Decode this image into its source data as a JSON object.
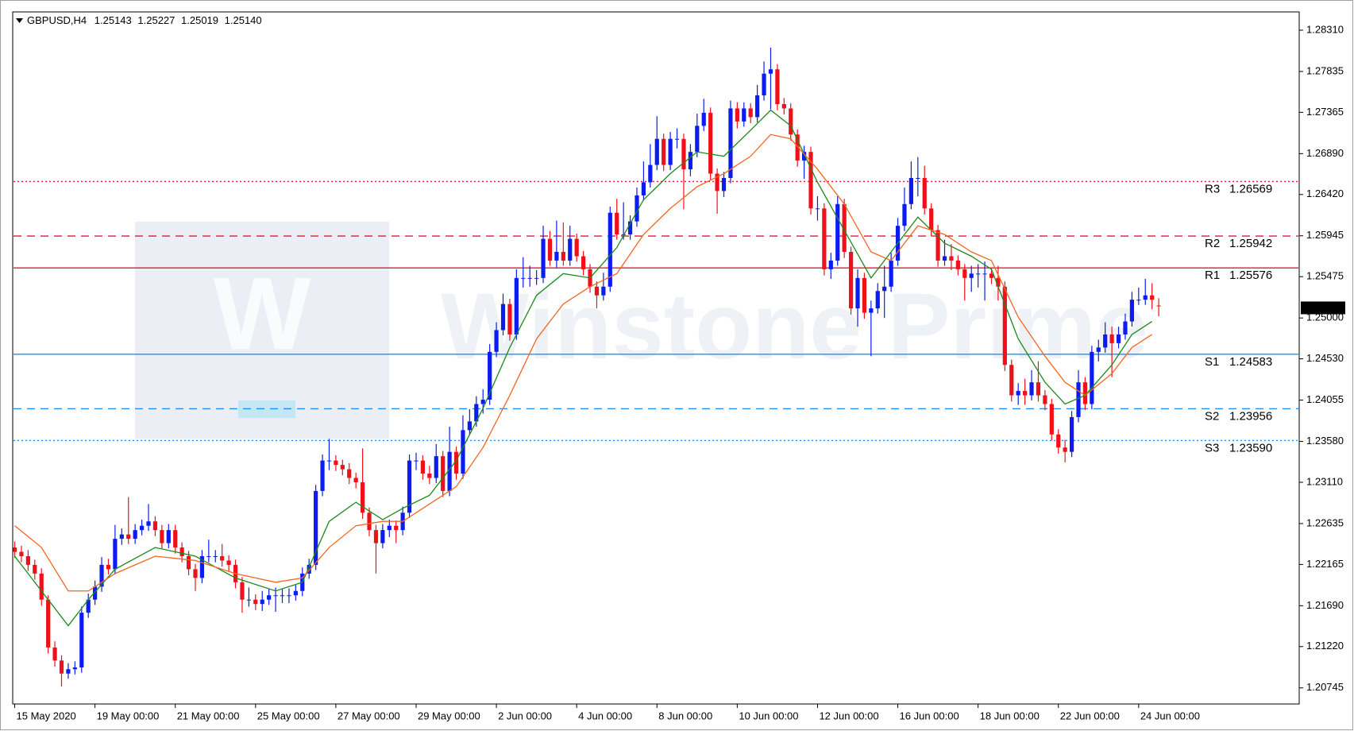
{
  "chart_data": {
    "type": "candlestick",
    "symbol": "GBPUSD,H4",
    "ohlc_labels": [
      "1.25143",
      "1.25227",
      "1.25019",
      "1.25140"
    ],
    "watermark": "Winstone Prime",
    "watermark_logo": "W",
    "up_color": "#0a1cf0",
    "down_color": "#f0101a",
    "candles": [
      [
        1.2236,
        1.2243,
        1.2224,
        1.2231
      ],
      [
        1.2231,
        1.2238,
        1.2219,
        1.2226
      ],
      [
        1.2226,
        1.2233,
        1.2209,
        1.2216
      ],
      [
        1.2216,
        1.2222,
        1.2199,
        1.2206
      ],
      [
        1.2206,
        1.2212,
        1.2169,
        1.2176
      ],
      [
        1.2176,
        1.2181,
        1.2114,
        1.2121
      ],
      [
        1.2121,
        1.2128,
        1.2099,
        1.2106
      ],
      [
        1.2106,
        1.2112,
        1.2076,
        1.2091
      ],
      [
        1.2091,
        1.2103,
        1.2085,
        1.2096
      ],
      [
        1.2096,
        1.2105,
        1.209,
        1.2098
      ],
      [
        1.2098,
        1.2168,
        1.2092,
        1.2161
      ],
      [
        1.2161,
        1.2183,
        1.2155,
        1.2176
      ],
      [
        1.2176,
        1.2198,
        1.217,
        1.2191
      ],
      [
        1.2191,
        1.2225,
        1.2185,
        1.2216
      ],
      [
        1.2216,
        1.2223,
        1.2205,
        1.2211
      ],
      [
        1.2211,
        1.2262,
        1.2205,
        1.2246
      ],
      [
        1.2246,
        1.2258,
        1.2239,
        1.2251
      ],
      [
        1.2251,
        1.2294,
        1.224,
        1.2246
      ],
      [
        1.2246,
        1.2263,
        1.224,
        1.2256
      ],
      [
        1.2256,
        1.2268,
        1.225,
        1.2261
      ],
      [
        1.2261,
        1.2286,
        1.2255,
        1.2266
      ],
      [
        1.2266,
        1.2272,
        1.2249,
        1.2256
      ],
      [
        1.2256,
        1.2262,
        1.2235,
        1.2241
      ],
      [
        1.2241,
        1.2263,
        1.2235,
        1.2256
      ],
      [
        1.2256,
        1.2262,
        1.2229,
        1.2236
      ],
      [
        1.2236,
        1.2242,
        1.2219,
        1.2226
      ],
      [
        1.2226,
        1.2232,
        1.2204,
        1.2211
      ],
      [
        1.2211,
        1.2217,
        1.2186,
        1.2201
      ],
      [
        1.2201,
        1.2233,
        1.2195,
        1.2226
      ],
      [
        1.2226,
        1.2245,
        1.2219,
        1.2226
      ],
      [
        1.2226,
        1.2233,
        1.2219,
        1.2226
      ],
      [
        1.2226,
        1.224,
        1.2214,
        1.2221
      ],
      [
        1.2221,
        1.2227,
        1.2209,
        1.2216
      ],
      [
        1.2216,
        1.2222,
        1.2189,
        1.2196
      ],
      [
        1.2196,
        1.2202,
        1.2161,
        1.2176
      ],
      [
        1.2176,
        1.219,
        1.2168,
        1.2176
      ],
      [
        1.2176,
        1.2182,
        1.2164,
        1.2171
      ],
      [
        1.2171,
        1.2186,
        1.2163,
        1.2176
      ],
      [
        1.2176,
        1.2188,
        1.217,
        1.2181
      ],
      [
        1.2181,
        1.219,
        1.2162,
        1.2181
      ],
      [
        1.2181,
        1.2188,
        1.2172,
        1.2181
      ],
      [
        1.2181,
        1.2189,
        1.2172,
        1.2181
      ],
      [
        1.2181,
        1.2193,
        1.2175,
        1.2186
      ],
      [
        1.2186,
        1.2213,
        1.218,
        1.2206
      ],
      [
        1.2206,
        1.2223,
        1.22,
        1.2216
      ],
      [
        1.2216,
        1.2308,
        1.221,
        1.2301
      ],
      [
        1.2301,
        1.2343,
        1.2295,
        1.2336
      ],
      [
        1.2336,
        1.2361,
        1.2325,
        1.2336
      ],
      [
        1.2336,
        1.2342,
        1.2324,
        1.2331
      ],
      [
        1.2331,
        1.2337,
        1.2319,
        1.2326
      ],
      [
        1.2326,
        1.2333,
        1.2309,
        1.2316
      ],
      [
        1.2316,
        1.2322,
        1.2304,
        1.2311
      ],
      [
        1.2311,
        1.235,
        1.2269,
        1.2276
      ],
      [
        1.2276,
        1.2282,
        1.2249,
        1.2256
      ],
      [
        1.2256,
        1.2262,
        1.2206,
        1.2241
      ],
      [
        1.2241,
        1.2263,
        1.2235,
        1.2256
      ],
      [
        1.2256,
        1.2268,
        1.2248,
        1.2261
      ],
      [
        1.2261,
        1.2267,
        1.2241,
        1.2256
      ],
      [
        1.2256,
        1.2283,
        1.225,
        1.2276
      ],
      [
        1.2276,
        1.2343,
        1.227,
        1.2336
      ],
      [
        1.2336,
        1.2345,
        1.2325,
        1.2336
      ],
      [
        1.2336,
        1.2342,
        1.2314,
        1.2321
      ],
      [
        1.2321,
        1.233,
        1.2309,
        1.2316
      ],
      [
        1.2316,
        1.2355,
        1.231,
        1.2341
      ],
      [
        1.2341,
        1.2347,
        1.2294,
        1.2301
      ],
      [
        1.2301,
        1.2375,
        1.2295,
        1.2346
      ],
      [
        1.2346,
        1.2352,
        1.2314,
        1.2321
      ],
      [
        1.2321,
        1.2388,
        1.2315,
        1.2371
      ],
      [
        1.2371,
        1.2395,
        1.2365,
        1.2381
      ],
      [
        1.2381,
        1.241,
        1.2375,
        1.2401
      ],
      [
        1.2401,
        1.2418,
        1.239,
        1.2406
      ],
      [
        1.2406,
        1.247,
        1.24,
        1.2461
      ],
      [
        1.2461,
        1.2495,
        1.2455,
        1.2486
      ],
      [
        1.2486,
        1.2528,
        1.248,
        1.2516
      ],
      [
        1.2516,
        1.2522,
        1.2474,
        1.2481
      ],
      [
        1.2481,
        1.2556,
        1.2475,
        1.2546
      ],
      [
        1.2546,
        1.257,
        1.2535,
        1.2546
      ],
      [
        1.2546,
        1.256,
        1.2536,
        1.2546
      ],
      [
        1.2546,
        1.2555,
        1.2538,
        1.2546
      ],
      [
        1.2546,
        1.2606,
        1.254,
        1.2591
      ],
      [
        1.2591,
        1.26,
        1.256,
        1.2566
      ],
      [
        1.2566,
        1.2612,
        1.2558,
        1.2576
      ],
      [
        1.2576,
        1.261,
        1.256,
        1.2566
      ],
      [
        1.2566,
        1.2606,
        1.256,
        1.2591
      ],
      [
        1.2591,
        1.2597,
        1.2565,
        1.2571
      ],
      [
        1.2571,
        1.2577,
        1.2549,
        1.2556
      ],
      [
        1.2556,
        1.2562,
        1.2529,
        1.2536
      ],
      [
        1.2536,
        1.2542,
        1.2511,
        1.2526
      ],
      [
        1.2526,
        1.2552,
        1.252,
        1.2536
      ],
      [
        1.2536,
        1.2628,
        1.253,
        1.2621
      ],
      [
        1.2621,
        1.2637,
        1.259,
        1.2596
      ],
      [
        1.2596,
        1.2633,
        1.259,
        1.2596
      ],
      [
        1.2596,
        1.2618,
        1.259,
        1.2611
      ],
      [
        1.2611,
        1.265,
        1.2605,
        1.2641
      ],
      [
        1.2641,
        1.268,
        1.2635,
        1.2656
      ],
      [
        1.2656,
        1.27,
        1.265,
        1.2676
      ],
      [
        1.2676,
        1.2732,
        1.267,
        1.2706
      ],
      [
        1.2706,
        1.2712,
        1.2669,
        1.2676
      ],
      [
        1.2676,
        1.2714,
        1.267,
        1.2706
      ],
      [
        1.2706,
        1.2718,
        1.2695,
        1.2706
      ],
      [
        1.2706,
        1.2712,
        1.2625,
        1.2671
      ],
      [
        1.2671,
        1.27,
        1.2663,
        1.2691
      ],
      [
        1.2691,
        1.2735,
        1.2685,
        1.2721
      ],
      [
        1.2721,
        1.2752,
        1.2715,
        1.2736
      ],
      [
        1.2736,
        1.2742,
        1.2658,
        1.2666
      ],
      [
        1.2666,
        1.2672,
        1.262,
        1.2646
      ],
      [
        1.2646,
        1.2668,
        1.2639,
        1.2661
      ],
      [
        1.2661,
        1.275,
        1.2655,
        1.2741
      ],
      [
        1.2741,
        1.2748,
        1.2718,
        1.2726
      ],
      [
        1.2726,
        1.2748,
        1.272,
        1.2741
      ],
      [
        1.2741,
        1.2747,
        1.2724,
        1.2731
      ],
      [
        1.2731,
        1.2768,
        1.2725,
        1.2756
      ],
      [
        1.2756,
        1.2795,
        1.275,
        1.2781
      ],
      [
        1.2781,
        1.2811,
        1.274,
        1.2786
      ],
      [
        1.2786,
        1.2792,
        1.2739,
        1.2746
      ],
      [
        1.2746,
        1.2753,
        1.2734,
        1.2741
      ],
      [
        1.2741,
        1.2747,
        1.2704,
        1.2711
      ],
      [
        1.2711,
        1.2717,
        1.2674,
        1.2681
      ],
      [
        1.2681,
        1.2698,
        1.266,
        1.2691
      ],
      [
        1.2691,
        1.2697,
        1.2619,
        1.2626
      ],
      [
        1.2626,
        1.264,
        1.2612,
        1.2626
      ],
      [
        1.2626,
        1.2632,
        1.2549,
        1.2556
      ],
      [
        1.2556,
        1.2575,
        1.2545,
        1.2566
      ],
      [
        1.2566,
        1.264,
        1.256,
        1.2631
      ],
      [
        1.2631,
        1.2637,
        1.2569,
        1.2576
      ],
      [
        1.2576,
        1.2582,
        1.2504,
        1.2511
      ],
      [
        1.2511,
        1.2556,
        1.249,
        1.2546
      ],
      [
        1.2546,
        1.2552,
        1.2499,
        1.2506
      ],
      [
        1.2506,
        1.252,
        1.2456,
        1.2511
      ],
      [
        1.2511,
        1.254,
        1.2505,
        1.2531
      ],
      [
        1.2531,
        1.256,
        1.25,
        1.2536
      ],
      [
        1.2536,
        1.2575,
        1.253,
        1.2566
      ],
      [
        1.2566,
        1.2615,
        1.256,
        1.2606
      ],
      [
        1.2606,
        1.265,
        1.26,
        1.2631
      ],
      [
        1.2631,
        1.268,
        1.2625,
        1.2661
      ],
      [
        1.2661,
        1.2685,
        1.264,
        1.2661
      ],
      [
        1.2661,
        1.2675,
        1.2619,
        1.2626
      ],
      [
        1.2626,
        1.2632,
        1.2594,
        1.2601
      ],
      [
        1.2601,
        1.2607,
        1.2559,
        1.2566
      ],
      [
        1.2566,
        1.259,
        1.256,
        1.2571
      ],
      [
        1.2571,
        1.2585,
        1.2555,
        1.2566
      ],
      [
        1.2566,
        1.2572,
        1.2549,
        1.2556
      ],
      [
        1.2556,
        1.2562,
        1.252,
        1.2546
      ],
      [
        1.2546,
        1.256,
        1.253,
        1.2551
      ],
      [
        1.2551,
        1.2562,
        1.2535,
        1.2551
      ],
      [
        1.2551,
        1.2565,
        1.252,
        1.2551
      ],
      [
        1.2551,
        1.2557,
        1.2539,
        1.2546
      ],
      [
        1.2546,
        1.256,
        1.252,
        1.2536
      ],
      [
        1.2536,
        1.2542,
        1.2439,
        1.2446
      ],
      [
        1.2446,
        1.2452,
        1.2404,
        1.2411
      ],
      [
        1.2411,
        1.2425,
        1.24,
        1.2416
      ],
      [
        1.2416,
        1.243,
        1.24,
        1.2411
      ],
      [
        1.2411,
        1.244,
        1.2405,
        1.2426
      ],
      [
        1.2426,
        1.245,
        1.2404,
        1.2411
      ],
      [
        1.2411,
        1.2417,
        1.2394,
        1.2401
      ],
      [
        1.2401,
        1.2407,
        1.2359,
        1.2366
      ],
      [
        1.2366,
        1.2372,
        1.2344,
        1.2351
      ],
      [
        1.2351,
        1.236,
        1.2334,
        1.2346
      ],
      [
        1.2346,
        1.2393,
        1.234,
        1.2386
      ],
      [
        1.2386,
        1.244,
        1.238,
        1.2426
      ],
      [
        1.2426,
        1.2432,
        1.2394,
        1.2401
      ],
      [
        1.2401,
        1.2468,
        1.2395,
        1.2461
      ],
      [
        1.2461,
        1.2475,
        1.245,
        1.2466
      ],
      [
        1.2466,
        1.2495,
        1.246,
        1.2481
      ],
      [
        1.2481,
        1.249,
        1.2432,
        1.2471
      ],
      [
        1.2471,
        1.249,
        1.2465,
        1.2481
      ],
      [
        1.2481,
        1.2505,
        1.2475,
        1.2496
      ],
      [
        1.2496,
        1.253,
        1.249,
        1.2521
      ],
      [
        1.2521,
        1.2535,
        1.2515,
        1.2521
      ],
      [
        1.2521,
        1.2545,
        1.2515,
        1.2526
      ],
      [
        1.2526,
        1.254,
        1.251,
        1.2521
      ],
      [
        1.25143,
        1.25227,
        1.25019,
        1.2514
      ]
    ],
    "indicators": [
      {
        "color": "#1a8a1a",
        "x": [
          0,
          4,
          8,
          11,
          15,
          21,
          27,
          33,
          39,
          43,
          47,
          51,
          55,
          58,
          62,
          66,
          70,
          74,
          78,
          82,
          86,
          90,
          94,
          98,
          102,
          106,
          110,
          113,
          116,
          120,
          124,
          128,
          131,
          135,
          139,
          143,
          146,
          150,
          154,
          157,
          160,
          164,
          167,
          170
        ],
        "values": [
          1.2226,
          1.2186,
          1.2146,
          1.2176,
          1.2211,
          1.2236,
          1.2226,
          1.2201,
          1.2186,
          1.2196,
          1.2266,
          1.2288,
          1.2268,
          1.2281,
          1.2296,
          1.2336,
          1.2396,
          1.2466,
          1.2526,
          1.2551,
          1.2546,
          1.2581,
          1.2636,
          1.2666,
          1.2691,
          1.2686,
          1.2716,
          1.2739,
          1.2721,
          1.2656,
          1.2601,
          1.2546,
          1.2576,
          1.2616,
          1.2586,
          1.2571,
          1.2556,
          1.2476,
          1.2426,
          1.2401,
          1.2411,
          1.2446,
          1.2481,
          1.2496
        ]
      },
      {
        "color": "#f2661e",
        "x": [
          0,
          4,
          8,
          11,
          15,
          21,
          27,
          33,
          39,
          43,
          47,
          51,
          55,
          58,
          62,
          66,
          70,
          74,
          78,
          82,
          86,
          90,
          94,
          98,
          102,
          106,
          110,
          113,
          116,
          120,
          124,
          128,
          131,
          135,
          139,
          143,
          146,
          150,
          154,
          157,
          160,
          164,
          167,
          170
        ],
        "values": [
          1.2261,
          1.2236,
          1.2186,
          1.2186,
          1.2206,
          1.2226,
          1.2221,
          1.2206,
          1.2196,
          1.2201,
          1.2236,
          1.2261,
          1.2266,
          1.2266,
          1.2286,
          1.2306,
          1.2351,
          1.2411,
          1.2476,
          1.2516,
          1.2536,
          1.2551,
          1.2596,
          1.2626,
          1.2651,
          1.2666,
          1.2686,
          1.2711,
          1.2706,
          1.2671,
          1.2631,
          1.2576,
          1.2566,
          1.2606,
          1.2596,
          1.2576,
          1.2566,
          1.2501,
          1.2456,
          1.2426,
          1.2411,
          1.2436,
          1.2466,
          1.2481
        ]
      }
    ],
    "levels": [
      {
        "name": "R3",
        "value": 1.26569,
        "color": "#e0163c",
        "style": "dotted"
      },
      {
        "name": "R2",
        "value": 1.25942,
        "color": "#e0163c",
        "style": "dashed"
      },
      {
        "name": "R1",
        "value": 1.25576,
        "color": "#e0163c",
        "style": "solid"
      },
      {
        "name": "S1",
        "value": 1.24583,
        "color": "#1e8ff0",
        "style": "solid"
      },
      {
        "name": "S2",
        "value": 1.23956,
        "color": "#1e8ff0",
        "style": "dashed"
      },
      {
        "name": "S3",
        "value": 1.2359,
        "label": "1.23590",
        "color": "#1e8ff0",
        "style": "dotted"
      }
    ],
    "current_price": 1.25116,
    "ylim": [
      1.2056,
      1.2852
    ],
    "yticks": [
      {
        "value": 1.2831,
        "label": "1.28310"
      },
      1.27835,
      1.27365,
      {
        "value": 1.2689,
        "label": "1.26890"
      },
      {
        "value": 1.2642,
        "label": "1.26420"
      },
      1.25945,
      1.25475,
      {
        "value": 1.25,
        "label": "1.25000"
      },
      {
        "value": 1.2453,
        "label": "1.24530"
      },
      1.24055,
      {
        "value": 1.2358,
        "label": "1.23580"
      },
      {
        "value": 1.2311,
        "label": "1.23110"
      },
      1.22635,
      1.22165,
      {
        "value": 1.2169,
        "label": "1.21690"
      },
      {
        "value": 1.2122,
        "label": "1.21220"
      },
      1.20745
    ],
    "xlim": [
      -0.3,
      192
    ],
    "xticks": [
      {
        "value": 0,
        "label": "15 May 2020"
      },
      {
        "value": 12,
        "label": "19 May 00:00"
      },
      {
        "value": 24,
        "label": "21 May 00:00"
      },
      {
        "value": 36,
        "label": "25 May 00:00"
      },
      {
        "value": 48,
        "label": "27 May 00:00"
      },
      {
        "value": 60,
        "label": "29 May 00:00"
      },
      {
        "value": 72,
        "label": "2 Jun 00:00"
      },
      {
        "value": 84,
        "label": "4 Jun 00:00"
      },
      {
        "value": 96,
        "label": "8 Jun 00:00"
      },
      {
        "value": 108,
        "label": "10 Jun 00:00"
      },
      {
        "value": 120,
        "label": "12 Jun 00:00"
      },
      {
        "value": 132,
        "label": "16 Jun 00:00"
      },
      {
        "value": 144,
        "label": "18 Jun 00:00"
      },
      {
        "value": 156,
        "label": "22 Jun 00:00"
      },
      {
        "value": 168,
        "label": "24 Jun 00:00"
      }
    ]
  }
}
